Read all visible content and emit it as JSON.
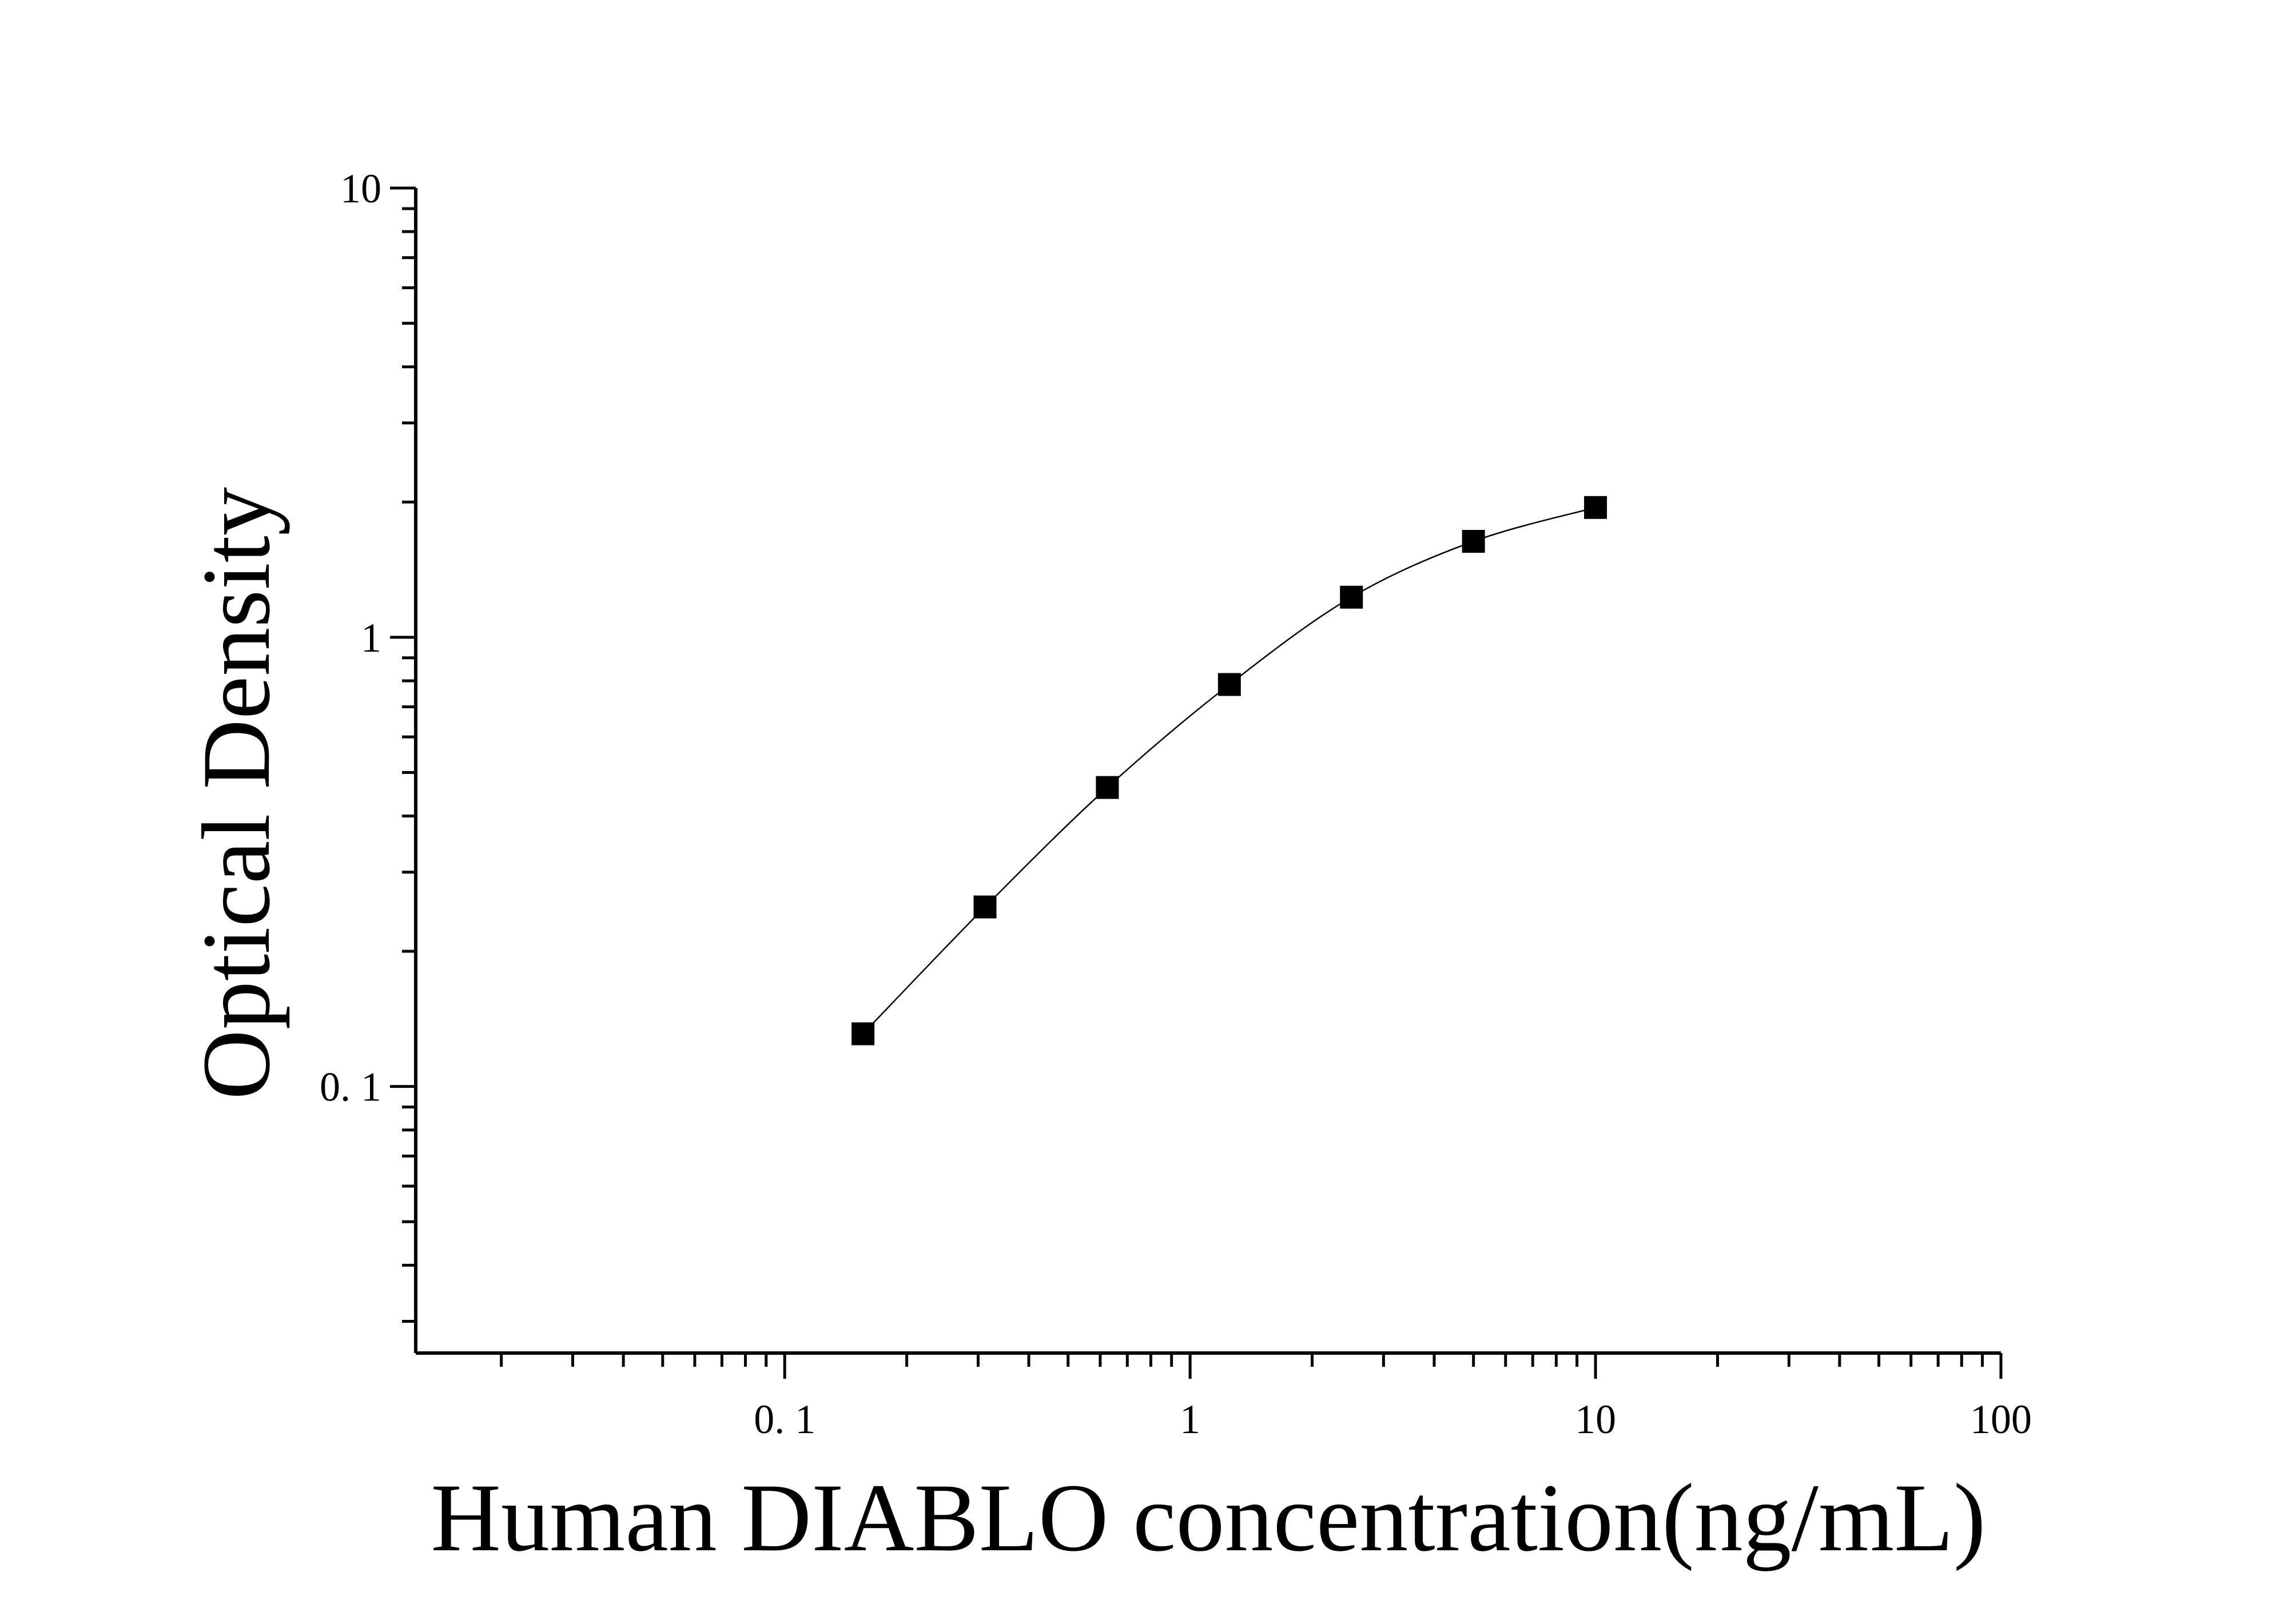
{
  "chart_data": {
    "type": "scatter",
    "title": "",
    "xlabel": "Human DIABLO concentration(ng/mL)",
    "ylabel": "Optical Density",
    "x_scale": "log",
    "y_scale": "log",
    "xlim": [
      0.0123,
      100
    ],
    "ylim": [
      0.0255,
      10
    ],
    "x_tick_labels": [
      {
        "value": 0.1,
        "label": "0. 1"
      },
      {
        "value": 1,
        "label": "1"
      },
      {
        "value": 10,
        "label": "10"
      },
      {
        "value": 100,
        "label": "100"
      }
    ],
    "y_tick_labels": [
      {
        "value": 0.1,
        "label": "0. 1"
      },
      {
        "value": 1,
        "label": "1"
      },
      {
        "value": 10,
        "label": "10"
      }
    ],
    "grid": false,
    "fit_curve": true,
    "series": [
      {
        "x": [
          0.156,
          0.312,
          0.625,
          1.25,
          2.5,
          5,
          10
        ],
        "y": [
          0.131,
          0.251,
          0.463,
          0.785,
          1.228,
          1.635,
          1.945
        ]
      }
    ],
    "colors": {
      "marker": "#000000",
      "line": "#000000",
      "axis": "#000000"
    }
  }
}
